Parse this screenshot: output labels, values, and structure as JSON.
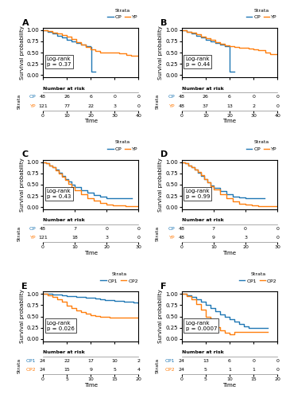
{
  "chart_data": [
    {
      "type": "step",
      "title": "A",
      "xlabel": "Time",
      "ylabel": "Survival probability",
      "legend": "upper right",
      "legend_title": "Strata",
      "xlim": [
        0,
        40
      ],
      "xticks": [
        0,
        10,
        20,
        30,
        40
      ],
      "ylim": [
        -0.05,
        1.05
      ],
      "yticks": [
        {
          "value": 0.0,
          "label": "0.00"
        },
        0.25,
        {
          "value": 0.5,
          "label": "0.50"
        },
        0.75,
        {
          "value": 1.0,
          "label": "1.00"
        }
      ],
      "series": [
        {
          "name": "OP",
          "x": [
            0,
            2,
            4,
            6,
            8,
            10,
            12,
            14,
            16,
            18,
            20,
            20.1,
            22
          ],
          "values": [
            1.0,
            0.96,
            0.92,
            0.88,
            0.84,
            0.79,
            0.75,
            0.72,
            0.68,
            0.65,
            0.63,
            0.08,
            0.08
          ]
        },
        {
          "name": "YP",
          "x": [
            0,
            2,
            4,
            6,
            8,
            10,
            12,
            14,
            16,
            18,
            20,
            22,
            24,
            25,
            26,
            27,
            28,
            29,
            30,
            32,
            35,
            37,
            40
          ],
          "values": [
            1.0,
            0.98,
            0.95,
            0.92,
            0.89,
            0.85,
            0.8,
            0.74,
            0.68,
            0.62,
            0.57,
            0.54,
            0.51,
            0.5,
            0.5,
            0.5,
            0.5,
            0.5,
            0.5,
            0.48,
            0.45,
            0.44,
            0.44
          ]
        }
      ],
      "annotations": [
        "Log-rank\np = 0.37"
      ],
      "risk_table": {
        "title": "Number at risk",
        "label": "Strata",
        "x": [
          0,
          10,
          20,
          30,
          40
        ],
        "rows": [
          {
            "name": "OP",
            "values": [
              48,
              26,
              6,
              0,
              0
            ]
          },
          {
            "name": "YP",
            "values": [
              121,
              77,
              22,
              3,
              0
            ]
          }
        ]
      }
    },
    {
      "type": "step",
      "title": "B",
      "xlabel": "Time",
      "ylabel": "Survival probability",
      "legend": "upper right",
      "legend_title": "Strata",
      "xlim": [
        0,
        40
      ],
      "xticks": [
        0,
        10,
        20,
        30,
        40
      ],
      "ylim": [
        -0.05,
        1.05
      ],
      "yticks": [
        {
          "value": 0.0,
          "label": "0.00"
        },
        0.25,
        {
          "value": 0.5,
          "label": "0.50"
        },
        0.75,
        {
          "value": 1.0,
          "label": "1.00"
        }
      ],
      "series": [
        {
          "name": "OP",
          "x": [
            0,
            2,
            4,
            6,
            8,
            10,
            12,
            14,
            16,
            18,
            20,
            20.1,
            22
          ],
          "values": [
            1.0,
            0.96,
            0.92,
            0.88,
            0.84,
            0.79,
            0.75,
            0.72,
            0.68,
            0.65,
            0.63,
            0.08,
            0.08
          ]
        },
        {
          "name": "YP",
          "x": [
            0,
            2,
            4,
            6,
            8,
            10,
            12,
            14,
            16,
            18,
            20,
            22,
            24,
            25,
            26,
            28,
            30,
            32,
            35,
            37,
            40
          ],
          "values": [
            1.0,
            0.97,
            0.94,
            0.9,
            0.86,
            0.82,
            0.78,
            0.73,
            0.7,
            0.67,
            0.64,
            0.62,
            0.6,
            0.6,
            0.6,
            0.59,
            0.58,
            0.55,
            0.5,
            0.47,
            0.46
          ]
        }
      ],
      "annotations": [
        "Log-rank\np = 0.44"
      ],
      "risk_table": {
        "title": "Number at risk",
        "label": "Strata",
        "x": [
          0,
          10,
          20,
          30,
          40
        ],
        "rows": [
          {
            "name": "OP",
            "values": [
              48,
              26,
              6,
              0,
              0
            ]
          },
          {
            "name": "YP",
            "values": [
              48,
              37,
              13,
              2,
              0
            ]
          }
        ]
      }
    },
    {
      "type": "step",
      "title": "C",
      "xlabel": "Time",
      "ylabel": "Survival probability",
      "legend": "upper right",
      "legend_title": "Strata",
      "xlim": [
        0,
        30
      ],
      "xticks": [
        0,
        10,
        20,
        30
      ],
      "ylim": [
        -0.05,
        1.05
      ],
      "yticks": [
        {
          "value": 0.0,
          "label": "0.00"
        },
        0.25,
        {
          "value": 0.5,
          "label": "0.50"
        },
        0.75,
        {
          "value": 1.0,
          "label": "1.00"
        }
      ],
      "series": [
        {
          "name": "OP",
          "x": [
            0,
            1,
            2,
            3,
            4,
            5,
            6,
            7,
            8,
            9,
            10,
            12,
            14,
            16,
            18,
            20,
            22,
            24,
            26,
            28
          ],
          "values": [
            1.0,
            0.97,
            0.93,
            0.88,
            0.83,
            0.77,
            0.7,
            0.63,
            0.56,
            0.5,
            0.44,
            0.38,
            0.32,
            0.27,
            0.23,
            0.2,
            0.2,
            0.2,
            0.2,
            0.2
          ]
        },
        {
          "name": "YP",
          "x": [
            0,
            1,
            2,
            3,
            4,
            5,
            6,
            7,
            8,
            9,
            10,
            12,
            14,
            16,
            18,
            20,
            22,
            24,
            26,
            28,
            30
          ],
          "values": [
            1.0,
            0.97,
            0.93,
            0.88,
            0.82,
            0.75,
            0.68,
            0.6,
            0.52,
            0.44,
            0.38,
            0.28,
            0.2,
            0.14,
            0.09,
            0.06,
            0.04,
            0.03,
            0.02,
            0.02,
            0.02
          ]
        }
      ],
      "annotations": [
        "Log-rank\np = 0.43"
      ],
      "risk_table": {
        "title": "Number at risk",
        "label": "Strata",
        "x": [
          0,
          10,
          20,
          30
        ],
        "rows": [
          {
            "name": "OP",
            "values": [
              48,
              7,
              0,
              0
            ]
          },
          {
            "name": "YP",
            "values": [
              121,
              18,
              3,
              0
            ]
          }
        ]
      }
    },
    {
      "type": "step",
      "title": "D",
      "xlabel": "Time",
      "ylabel": "Survival probability",
      "legend": "upper right",
      "legend_title": "Strata",
      "xlim": [
        0,
        30
      ],
      "xticks": [
        0,
        10,
        20,
        30
      ],
      "ylim": [
        -0.05,
        1.05
      ],
      "yticks": [
        {
          "value": 0.0,
          "label": "0.00"
        },
        0.25,
        {
          "value": 0.5,
          "label": "0.50"
        },
        0.75,
        {
          "value": 1.0,
          "label": "1.00"
        }
      ],
      "series": [
        {
          "name": "OP",
          "x": [
            0,
            1,
            2,
            3,
            4,
            5,
            6,
            7,
            8,
            9,
            10,
            12,
            14,
            16,
            18,
            20,
            22,
            24,
            26
          ],
          "values": [
            1.0,
            0.97,
            0.93,
            0.88,
            0.83,
            0.77,
            0.7,
            0.62,
            0.55,
            0.48,
            0.42,
            0.35,
            0.29,
            0.24,
            0.21,
            0.2,
            0.2,
            0.2,
            0.2
          ]
        },
        {
          "name": "YP",
          "x": [
            0,
            1,
            2,
            3,
            4,
            5,
            6,
            7,
            8,
            9,
            10,
            12,
            14,
            16,
            18,
            20,
            22,
            24,
            26,
            28,
            30
          ],
          "values": [
            1.0,
            0.97,
            0.93,
            0.89,
            0.84,
            0.78,
            0.71,
            0.63,
            0.55,
            0.47,
            0.4,
            0.29,
            0.2,
            0.13,
            0.08,
            0.05,
            0.03,
            0.02,
            0.02,
            0.02,
            0.02
          ]
        }
      ],
      "annotations": [
        "Log-rank\np = 0.99"
      ],
      "risk_table": {
        "title": "Number at risk",
        "label": "Strata",
        "x": [
          0,
          10,
          20,
          30
        ],
        "rows": [
          {
            "name": "OP",
            "values": [
              48,
              7,
              0,
              0
            ]
          },
          {
            "name": "YP",
            "values": [
              48,
              9,
              3,
              0
            ]
          }
        ]
      }
    },
    {
      "type": "step",
      "title": "E",
      "xlabel": "Time",
      "ylabel": "Survival probability",
      "legend": "upper right",
      "legend_title": "Strata",
      "xlim": [
        0,
        20
      ],
      "xticks": [
        0,
        5,
        10,
        15,
        20
      ],
      "ylim": [
        -0.05,
        1.05
      ],
      "yticks": [
        {
          "value": 0.0,
          "label": "0.00"
        },
        0.25,
        {
          "value": 0.5,
          "label": "0.50"
        },
        0.75,
        {
          "value": 1.0,
          "label": "1.00"
        }
      ],
      "series": [
        {
          "name": "OP1",
          "x": [
            0,
            1,
            2,
            3,
            4,
            5,
            6,
            7,
            8,
            9,
            10,
            11,
            12,
            13,
            14,
            15,
            16,
            17,
            18,
            19,
            20
          ],
          "values": [
            1.0,
            1.0,
            0.99,
            0.98,
            0.97,
            0.96,
            0.95,
            0.94,
            0.93,
            0.92,
            0.91,
            0.9,
            0.88,
            0.87,
            0.86,
            0.85,
            0.84,
            0.83,
            0.82,
            0.81,
            0.8
          ]
        },
        {
          "name": "OP2",
          "x": [
            0,
            1,
            2,
            3,
            4,
            5,
            6,
            7,
            8,
            9,
            10,
            11,
            12,
            13,
            14,
            15,
            16,
            17,
            18,
            19,
            20
          ],
          "values": [
            1.0,
            0.97,
            0.93,
            0.88,
            0.82,
            0.74,
            0.68,
            0.63,
            0.59,
            0.56,
            0.53,
            0.51,
            0.5,
            0.49,
            0.48,
            0.47,
            0.47,
            0.47,
            0.47,
            0.47,
            0.47
          ]
        }
      ],
      "annotations": [
        "Log-rank\np = 0.026"
      ],
      "risk_table": {
        "title": "Number at risk",
        "label": "Strata",
        "x": [
          0,
          5,
          10,
          15,
          20
        ],
        "rows": [
          {
            "name": "OP1",
            "values": [
              24,
              22,
              17,
              10,
              2
            ]
          },
          {
            "name": "OP2",
            "values": [
              24,
              15,
              9,
              5,
              4
            ]
          }
        ]
      }
    },
    {
      "type": "step",
      "title": "F",
      "xlabel": "Time",
      "ylabel": "Survival probability",
      "legend": "upper right",
      "legend_title": "Strata",
      "xlim": [
        0,
        20
      ],
      "xticks": [
        0,
        5,
        10,
        15,
        20
      ],
      "ylim": [
        -0.05,
        1.05
      ],
      "yticks": [
        {
          "value": 0.0,
          "label": "0.00"
        },
        0.25,
        {
          "value": 0.5,
          "label": "0.50"
        },
        0.75,
        {
          "value": 1.0,
          "label": "1.00"
        }
      ],
      "series": [
        {
          "name": "OP1",
          "x": [
            0,
            1,
            2,
            3,
            4,
            5,
            6,
            7,
            8,
            9,
            10,
            11,
            12,
            13,
            14,
            15,
            16,
            17,
            18
          ],
          "values": [
            1.0,
            0.97,
            0.93,
            0.88,
            0.83,
            0.76,
            0.69,
            0.62,
            0.55,
            0.49,
            0.44,
            0.38,
            0.33,
            0.28,
            0.25,
            0.25,
            0.25,
            0.25,
            0.25
          ]
        },
        {
          "name": "OP2",
          "x": [
            0,
            1,
            2,
            3,
            4,
            5,
            6,
            7,
            8,
            9,
            10,
            11,
            12,
            13,
            14,
            15,
            16,
            17,
            18
          ],
          "values": [
            1.0,
            0.95,
            0.88,
            0.78,
            0.65,
            0.5,
            0.37,
            0.27,
            0.19,
            0.14,
            0.11,
            0.15,
            0.15,
            0.15,
            0.15,
            0.15,
            0.15,
            0.15,
            0.15
          ]
        }
      ],
      "annotations": [
        "Log-rank\np = 0.0007"
      ],
      "risk_table": {
        "title": "Number at risk",
        "label": "Strata",
        "x": [
          0,
          5,
          10,
          15,
          20
        ],
        "rows": [
          {
            "name": "OP1",
            "values": [
              24,
              13,
              6,
              0,
              0
            ]
          },
          {
            "name": "OP2",
            "values": [
              24,
              5,
              1,
              1,
              0
            ]
          }
        ]
      }
    }
  ]
}
